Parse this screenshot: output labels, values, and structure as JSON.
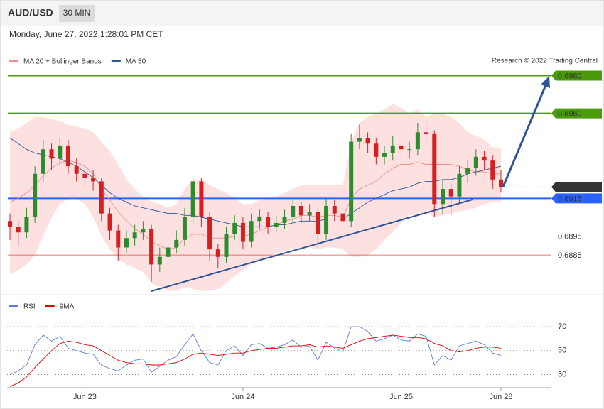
{
  "header": {
    "symbol": "AUD/USD",
    "timeframe": "30 MIN",
    "datetime": "Monday, June 27, 2022 1:28:01 PM CET",
    "credit": "Research © 2022 Trading Central"
  },
  "chart_data": [
    {
      "type": "candlestick",
      "categories": [
        null,
        null,
        null,
        null,
        null,
        null,
        null,
        null,
        null,
        "Jun 23",
        null,
        null,
        null,
        null,
        null,
        null,
        null,
        null,
        null,
        null,
        null,
        null,
        null,
        null,
        null,
        null,
        null,
        null,
        "Jun 24",
        null,
        null,
        null,
        null,
        null,
        null,
        null,
        null,
        null,
        null,
        null,
        null,
        null,
        null,
        null,
        null,
        null,
        null,
        "Jun 25",
        null,
        null,
        null,
        null,
        null,
        null,
        null,
        null,
        null,
        null,
        null,
        "Jun 28"
      ],
      "open": [
        0.6903,
        0.69,
        0.6897,
        0.6905,
        0.6928,
        0.6941,
        0.6936,
        0.6943,
        0.6932,
        0.6928,
        0.6926,
        0.6924,
        0.6907,
        0.6898,
        0.6889,
        0.6894,
        0.6897,
        0.6899,
        0.688,
        0.6884,
        0.6889,
        0.6893,
        0.6905,
        0.6924,
        0.6905,
        0.6888,
        0.6884,
        0.6896,
        0.6902,
        0.6892,
        0.6903,
        0.6905,
        0.69,
        0.6902,
        0.6905,
        0.6911,
        0.6906,
        0.6908,
        0.6896,
        0.6911,
        0.6907,
        0.6903,
        0.6945,
        0.6947,
        0.6944,
        0.6937,
        0.6939,
        0.6943,
        0.6941,
        0.6941,
        0.695,
        0.6949,
        0.6912,
        0.692,
        0.6916,
        0.6928,
        0.6931,
        0.6937,
        0.6935,
        0.6925
      ],
      "high": [
        0.6907,
        0.6903,
        0.691,
        0.6932,
        0.6946,
        0.6944,
        0.6947,
        0.6946,
        0.6936,
        0.6932,
        0.693,
        0.6926,
        0.691,
        0.6901,
        0.6898,
        0.6901,
        0.6903,
        0.6901,
        0.6889,
        0.6894,
        0.6898,
        0.691,
        0.6926,
        0.6926,
        0.6908,
        0.6891,
        0.69,
        0.6906,
        0.6905,
        0.6907,
        0.6909,
        0.6908,
        0.6906,
        0.6909,
        0.6914,
        0.6913,
        0.6912,
        0.691,
        0.6915,
        0.6914,
        0.691,
        0.6949,
        0.6954,
        0.695,
        0.6947,
        0.6943,
        0.6948,
        0.6946,
        0.6945,
        0.6955,
        0.6956,
        0.6951,
        0.6925,
        0.6923,
        0.6932,
        0.6935,
        0.6941,
        0.694,
        0.6938,
        0.693
      ],
      "low": [
        0.6893,
        0.689,
        0.6894,
        0.6902,
        0.6924,
        0.693,
        0.6932,
        0.6928,
        0.6924,
        0.6921,
        0.6919,
        0.6903,
        0.6893,
        0.6882,
        0.6886,
        0.689,
        0.6893,
        0.6871,
        0.6876,
        0.6881,
        0.6886,
        0.689,
        0.6902,
        0.69,
        0.6882,
        0.6878,
        0.6881,
        0.6893,
        0.6888,
        0.6889,
        0.6899,
        0.6896,
        0.6897,
        0.6899,
        0.6902,
        0.6902,
        0.6903,
        0.6889,
        0.6893,
        0.6903,
        0.6896,
        0.69,
        0.6941,
        0.6939,
        0.6933,
        0.6933,
        0.6935,
        0.6937,
        0.6936,
        0.6938,
        0.6944,
        0.6905,
        0.6907,
        0.6906,
        0.6912,
        0.6923,
        0.6927,
        0.693,
        0.692,
        0.6918
      ],
      "close": [
        0.69,
        0.6897,
        0.6905,
        0.6928,
        0.6941,
        0.6936,
        0.6943,
        0.6932,
        0.6928,
        0.6926,
        0.6924,
        0.6907,
        0.6898,
        0.6889,
        0.6894,
        0.6897,
        0.6899,
        0.688,
        0.6884,
        0.6889,
        0.6893,
        0.6905,
        0.6924,
        0.6905,
        0.6888,
        0.6884,
        0.6896,
        0.6902,
        0.6892,
        0.6903,
        0.6905,
        0.69,
        0.6902,
        0.6905,
        0.6911,
        0.6906,
        0.6908,
        0.6896,
        0.6911,
        0.6907,
        0.6903,
        0.6945,
        0.6947,
        0.6944,
        0.6937,
        0.6939,
        0.6943,
        0.6941,
        0.6941,
        0.695,
        0.6949,
        0.6912,
        0.692,
        0.6916,
        0.6928,
        0.6931,
        0.6937,
        0.6935,
        0.6925,
        0.6921
      ],
      "up_color": "#2e8b2e",
      "down_color": "#d62020",
      "ylim": [
        0.6864,
        0.7005
      ],
      "series": [
        {
          "name": "MA 20 + Bollinger Bands",
          "color": "#f28b8b",
          "band_color": "#fdd9d9",
          "values": [
            0.6913,
            0.6915,
            0.6918,
            0.6922,
            0.6927,
            0.6931,
            0.6934,
            0.6935,
            0.6934,
            0.6932,
            0.6928,
            0.692,
            0.6914,
            0.6908,
            0.6903,
            0.6899,
            0.6896,
            0.6892,
            0.689,
            0.6888,
            0.6889,
            0.6894,
            0.6896,
            0.6896,
            0.6894,
            0.6894,
            0.6894,
            0.6895,
            0.6895,
            0.6896,
            0.6898,
            0.69,
            0.6901,
            0.6903,
            0.6904,
            0.6906,
            0.6906,
            0.6905,
            0.6906,
            0.6906,
            0.6905,
            0.6915,
            0.692,
            0.6922,
            0.6924,
            0.6928,
            0.6931,
            0.6933,
            0.6933,
            0.6934,
            0.6933,
            0.6933,
            0.6933,
            0.6933,
            0.6932,
            0.693,
            0.6929,
            0.6929,
            0.6928,
            0.6928
          ],
          "upper": [
            0.695,
            0.6952,
            0.6955,
            0.6958,
            0.6958,
            0.6957,
            0.6956,
            0.6954,
            0.6953,
            0.6952,
            0.695,
            0.6945,
            0.694,
            0.6933,
            0.6925,
            0.692,
            0.6916,
            0.6913,
            0.6912,
            0.691,
            0.6912,
            0.692,
            0.6925,
            0.6925,
            0.6922,
            0.692,
            0.6918,
            0.6915,
            0.6912,
            0.6912,
            0.6914,
            0.6915,
            0.6916,
            0.6918,
            0.692,
            0.6922,
            0.6922,
            0.6922,
            0.6922,
            0.6922,
            0.6922,
            0.6945,
            0.6955,
            0.6958,
            0.696,
            0.6962,
            0.6965,
            0.6963,
            0.696,
            0.6962,
            0.6958,
            0.696,
            0.696,
            0.6958,
            0.6955,
            0.695,
            0.6948,
            0.6946,
            0.6942,
            0.6942
          ],
          "lower": [
            0.6875,
            0.6877,
            0.688,
            0.6885,
            0.6895,
            0.6905,
            0.6912,
            0.6915,
            0.6915,
            0.6912,
            0.6905,
            0.6895,
            0.6888,
            0.6883,
            0.688,
            0.6878,
            0.6876,
            0.687,
            0.6868,
            0.6866,
            0.6866,
            0.6868,
            0.6867,
            0.6866,
            0.6866,
            0.6867,
            0.687,
            0.6874,
            0.6877,
            0.688,
            0.6882,
            0.6884,
            0.6886,
            0.6887,
            0.6888,
            0.6889,
            0.6889,
            0.6888,
            0.6889,
            0.6889,
            0.6888,
            0.6884,
            0.6884,
            0.6885,
            0.6888,
            0.6893,
            0.6897,
            0.6902,
            0.6906,
            0.6906,
            0.6908,
            0.6905,
            0.6906,
            0.6907,
            0.6908,
            0.6909,
            0.691,
            0.6912,
            0.6913,
            0.6913
          ]
        },
        {
          "name": "MA 50",
          "color": "#2f5597",
          "values": [
            0.6947,
            0.6944,
            0.6941,
            0.6939,
            0.6938,
            0.6937,
            0.6936,
            0.6934,
            0.6932,
            0.6929,
            0.6926,
            0.6922,
            0.6918,
            0.6915,
            0.6913,
            0.6911,
            0.691,
            0.6909,
            0.6908,
            0.6907,
            0.6907,
            0.6906,
            0.6906,
            0.6905,
            0.6904,
            0.6903,
            0.6902,
            0.6901,
            0.69,
            0.69,
            0.69,
            0.69,
            0.6901,
            0.6901,
            0.6902,
            0.6903,
            0.6903,
            0.6903,
            0.6904,
            0.6904,
            0.6904,
            0.6907,
            0.691,
            0.6913,
            0.6915,
            0.6917,
            0.6919,
            0.692,
            0.6921,
            0.6923,
            0.6924,
            0.6924,
            0.6925,
            0.6925,
            0.6926,
            0.6928,
            0.6929,
            0.693,
            0.6931,
            0.6932
          ]
        }
      ],
      "levels": [
        {
          "value": 0.698,
          "label": "0.6980",
          "color": "#4a9a0a",
          "style": "solid",
          "boxed": true
        },
        {
          "value": 0.696,
          "label": "0.6960",
          "color": "#4a9a0a",
          "style": "solid",
          "boxed": true
        },
        {
          "value": 0.6921,
          "label": "0.6921",
          "color": "#333333",
          "style": "dotted",
          "boxed": true
        },
        {
          "value": 0.6915,
          "label": "0.6915",
          "color": "#2962ff",
          "style": "solid",
          "boxed": true
        },
        {
          "value": 0.6895,
          "label": "0.6895",
          "color": "#e04848",
          "style": "solid",
          "boxed": false
        },
        {
          "value": 0.6885,
          "label": "0.6885",
          "color": "#e04848",
          "style": "solid",
          "boxed": false
        }
      ]
    },
    {
      "type": "line",
      "series": [
        {
          "name": "RSI",
          "color": "#5b7fd8",
          "values": [
            30,
            33,
            38,
            55,
            63,
            58,
            62,
            52,
            50,
            48,
            47,
            38,
            35,
            33,
            38,
            42,
            43,
            32,
            37,
            42,
            45,
            55,
            64,
            50,
            40,
            38,
            50,
            54,
            46,
            55,
            56,
            52,
            53,
            55,
            59,
            53,
            54,
            42,
            57,
            52,
            49,
            70,
            70,
            66,
            58,
            60,
            63,
            59,
            58,
            64,
            62,
            38,
            46,
            42,
            54,
            56,
            58,
            55,
            48,
            46
          ]
        },
        {
          "name": "9MA",
          "color": "#e00000",
          "values": [
            20,
            23,
            28,
            36,
            43,
            50,
            56,
            58,
            57,
            55,
            54,
            50,
            46,
            42,
            40,
            39,
            39,
            38,
            38,
            39,
            40,
            43,
            47,
            48,
            47,
            46,
            47,
            48,
            48,
            50,
            51,
            52,
            52,
            53,
            54,
            54,
            55,
            53,
            54,
            53,
            52,
            55,
            58,
            60,
            61,
            62,
            63,
            62,
            61,
            61,
            60,
            56,
            54,
            50,
            49,
            50,
            52,
            53,
            53,
            52
          ]
        }
      ],
      "ylim": [
        19,
        79
      ],
      "yticks": [
        30,
        50,
        70
      ],
      "grid": true
    }
  ]
}
